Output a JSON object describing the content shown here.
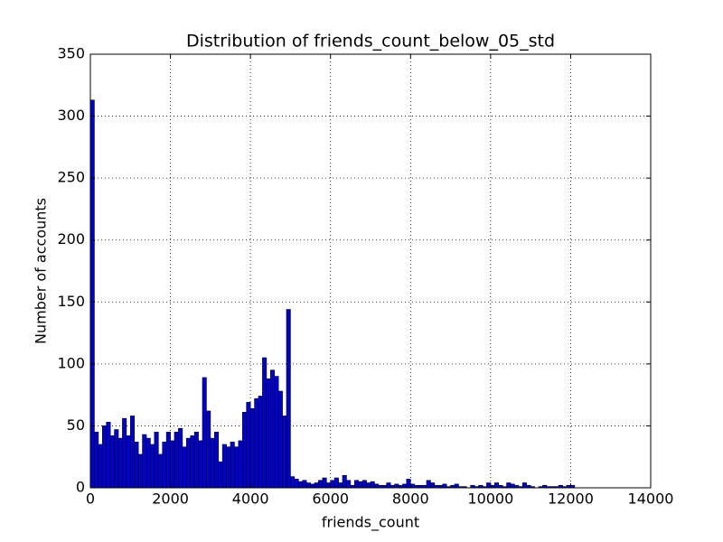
{
  "chart_data": {
    "type": "histogram",
    "title": "Distribution of friends_count_below_05_std",
    "x_label": "friends_count",
    "y_label": "Number of accounts",
    "color": "#0000cc",
    "bins": [
      0,
      100,
      200,
      300,
      400,
      500,
      600,
      700,
      800,
      900,
      1000,
      1100,
      1200,
      1300,
      1400,
      1500,
      1600,
      1700,
      1800,
      1900,
      2000,
      2100,
      2200,
      2300,
      2400,
      2500,
      2600,
      2700,
      2800,
      2900,
      3000,
      3100,
      3200,
      3300,
      3400,
      3500,
      3600,
      3700,
      3800,
      3900,
      4000,
      4100,
      4200,
      4300,
      4400,
      4500,
      4600,
      4700,
      4800,
      4900,
      5000,
      5100,
      5200,
      5300,
      5400,
      5500,
      5600,
      5700,
      5800,
      5900,
      6000,
      6100,
      6200,
      6300,
      6400,
      6500,
      6600,
      6700,
      6800,
      6900,
      7000,
      7100,
      7200,
      7300,
      7400,
      7500,
      7600,
      7700,
      7800,
      7900,
      8000,
      8100,
      8200,
      8300,
      8400,
      8500,
      8600,
      8700,
      8800,
      8900,
      9000,
      9100,
      9200,
      9300,
      9400,
      9500,
      9600,
      9700,
      9800,
      9900,
      10000,
      10100,
      10200,
      10300,
      10400,
      10500,
      10600,
      10700,
      10800,
      10900,
      11000,
      11100,
      11200,
      11300,
      11400,
      11500,
      11600,
      11700,
      11800,
      11900,
      12000,
      12100
    ],
    "counts": [
      313,
      45,
      35,
      50,
      53,
      42,
      47,
      40,
      56,
      42,
      58,
      37,
      27,
      43,
      40,
      35,
      45,
      27,
      37,
      45,
      38,
      45,
      48,
      33,
      40,
      42,
      45,
      38,
      89,
      62,
      40,
      45,
      21,
      35,
      33,
      37,
      33,
      38,
      61,
      69,
      64,
      72,
      74,
      105,
      88,
      95,
      90,
      78,
      58,
      144,
      9,
      7,
      5,
      6,
      4,
      3,
      4,
      6,
      8,
      4,
      6,
      8,
      4,
      10,
      6,
      2,
      6,
      5,
      6,
      4,
      5,
      3,
      2,
      2,
      4,
      2,
      3,
      2,
      3,
      7,
      3,
      2,
      2,
      2,
      6,
      4,
      2,
      2,
      3,
      1,
      2,
      3,
      1,
      1,
      0,
      2,
      1,
      2,
      1,
      4,
      2,
      4,
      2,
      1,
      4,
      3,
      2,
      1,
      4,
      2,
      1,
      0,
      1,
      2,
      1,
      1,
      1,
      2,
      1,
      2,
      2
    ],
    "xlim": [
      0,
      14000
    ],
    "xticks": [
      0,
      2000,
      4000,
      6000,
      8000,
      10000,
      12000,
      14000
    ],
    "ylim": [
      0,
      350
    ],
    "yticks": [
      0,
      50,
      100,
      150,
      200,
      250,
      300,
      350
    ],
    "grid": true
  }
}
